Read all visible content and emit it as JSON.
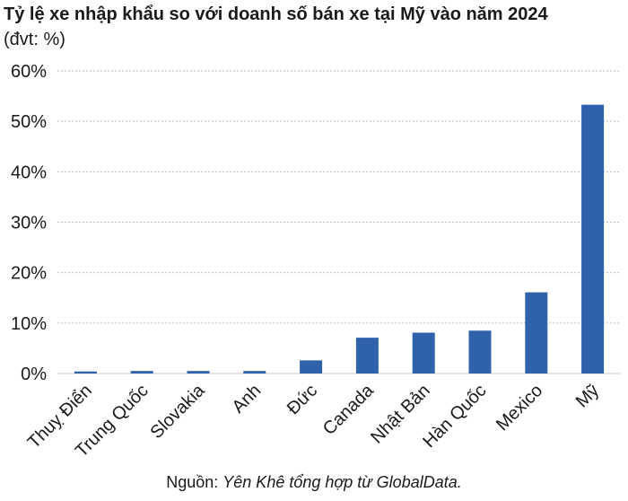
{
  "chart_data": {
    "type": "bar",
    "title": "Tỷ lệ xe nhập khẩu so với doanh số bán xe tại Mỹ vào năm 2024",
    "subtitle": "(đvt: %)",
    "categories": [
      "Thuỵ Điển",
      "Trung Quốc",
      "Slovakia",
      "Anh",
      "Đức",
      "Canada",
      "Nhật Bản",
      "Hàn Quốc",
      "Mexico",
      "Mỹ"
    ],
    "values": [
      0.4,
      0.5,
      0.5,
      0.5,
      2.6,
      7.1,
      8.1,
      8.5,
      16.1,
      53.3
    ],
    "ylim": [
      0,
      60
    ],
    "yticks": [
      0,
      10,
      20,
      30,
      40,
      50,
      60
    ],
    "ytick_labels": [
      "0%",
      "10%",
      "20%",
      "30%",
      "40%",
      "50%",
      "60%"
    ],
    "grid": true,
    "bar_color": "#2f62ab"
  },
  "source": {
    "prefix": "Nguồn: ",
    "text": "Yên Khê tổng hợp từ GlobalData."
  }
}
